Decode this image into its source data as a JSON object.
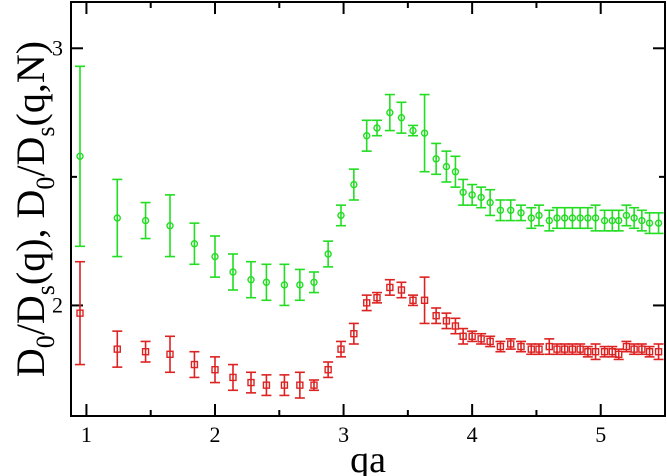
{
  "chart_data": {
    "type": "scatter",
    "xlabel": "qa",
    "ylabel": {
      "parts": [
        {
          "text": "D",
          "sub": false
        },
        {
          "text": "0",
          "sub": true
        },
        {
          "text": "/D",
          "sub": false
        },
        {
          "text": "s",
          "sub": true
        },
        {
          "text": "(q), D",
          "sub": false
        },
        {
          "text": "0",
          "sub": true
        },
        {
          "text": "/D",
          "sub": false
        },
        {
          "text": "s",
          "sub": true
        },
        {
          "text": "(q,N)",
          "sub": false
        }
      ]
    },
    "xlim": [
      0.88,
      5.5
    ],
    "ylim": [
      1.57,
      3.18
    ],
    "x_ticks": [
      1,
      2,
      3,
      4,
      5
    ],
    "x_tick_labels": [
      "1",
      "2",
      "3",
      "4",
      "5"
    ],
    "y_ticks": [
      2,
      3
    ],
    "y_tick_labels": [
      "2",
      "3"
    ],
    "grid": false,
    "series": [
      {
        "color": "#22dd22",
        "marker": "circle",
        "points": [
          [
            0.95,
            2.58,
            0.35
          ],
          [
            1.24,
            2.34,
            0.15
          ],
          [
            1.46,
            2.33,
            0.07
          ],
          [
            1.65,
            2.31,
            0.12
          ],
          [
            1.84,
            2.24,
            0.08
          ],
          [
            2.0,
            2.19,
            0.08
          ],
          [
            2.14,
            2.13,
            0.07
          ],
          [
            2.28,
            2.1,
            0.07
          ],
          [
            2.4,
            2.09,
            0.07
          ],
          [
            2.54,
            2.08,
            0.08
          ],
          [
            2.66,
            2.08,
            0.06
          ],
          [
            2.77,
            2.09,
            0.04
          ],
          [
            2.88,
            2.2,
            0.05
          ],
          [
            2.98,
            2.35,
            0.04
          ],
          [
            3.08,
            2.47,
            0.06
          ],
          [
            3.18,
            2.66,
            0.06
          ],
          [
            3.26,
            2.69,
            0.03
          ],
          [
            3.36,
            2.75,
            0.07
          ],
          [
            3.45,
            2.73,
            0.06
          ],
          [
            3.54,
            2.68,
            0.02
          ],
          [
            3.63,
            2.67,
            0.15
          ],
          [
            3.72,
            2.57,
            0.06
          ],
          [
            3.8,
            2.54,
            0.06
          ],
          [
            3.87,
            2.52,
            0.06
          ],
          [
            3.93,
            2.44,
            0.05
          ],
          [
            4.0,
            2.43,
            0.04
          ],
          [
            4.07,
            2.42,
            0.04
          ],
          [
            4.14,
            2.4,
            0.05
          ],
          [
            4.22,
            2.37,
            0.04
          ],
          [
            4.3,
            2.37,
            0.04
          ],
          [
            4.38,
            2.36,
            0.03
          ],
          [
            4.46,
            2.34,
            0.04
          ],
          [
            4.52,
            2.35,
            0.04
          ],
          [
            4.6,
            2.33,
            0.04
          ],
          [
            4.66,
            2.34,
            0.04
          ],
          [
            4.72,
            2.34,
            0.04
          ],
          [
            4.78,
            2.34,
            0.04
          ],
          [
            4.84,
            2.34,
            0.04
          ],
          [
            4.9,
            2.34,
            0.04
          ],
          [
            4.96,
            2.34,
            0.05
          ],
          [
            5.03,
            2.33,
            0.04
          ],
          [
            5.09,
            2.33,
            0.04
          ],
          [
            5.14,
            2.33,
            0.04
          ],
          [
            5.2,
            2.35,
            0.04
          ],
          [
            5.26,
            2.34,
            0.04
          ],
          [
            5.32,
            2.33,
            0.04
          ],
          [
            5.38,
            2.32,
            0.04
          ],
          [
            5.45,
            2.32,
            0.04
          ]
        ]
      },
      {
        "color": "#dd2222",
        "marker": "square",
        "points": [
          [
            0.95,
            1.97,
            0.2
          ],
          [
            1.24,
            1.83,
            0.07
          ],
          [
            1.46,
            1.82,
            0.04
          ],
          [
            1.65,
            1.81,
            0.07
          ],
          [
            1.84,
            1.77,
            0.05
          ],
          [
            2.0,
            1.75,
            0.05
          ],
          [
            2.14,
            1.72,
            0.05
          ],
          [
            2.28,
            1.7,
            0.04
          ],
          [
            2.4,
            1.69,
            0.04
          ],
          [
            2.54,
            1.69,
            0.04
          ],
          [
            2.66,
            1.69,
            0.05
          ],
          [
            2.77,
            1.69,
            0.02
          ],
          [
            2.88,
            1.75,
            0.03
          ],
          [
            2.98,
            1.83,
            0.03
          ],
          [
            3.08,
            1.89,
            0.04
          ],
          [
            3.18,
            2.01,
            0.03
          ],
          [
            3.26,
            2.03,
            0.02
          ],
          [
            3.36,
            2.07,
            0.03
          ],
          [
            3.45,
            2.06,
            0.03
          ],
          [
            3.54,
            2.02,
            0.02
          ],
          [
            3.63,
            2.02,
            0.09
          ],
          [
            3.72,
            1.96,
            0.03
          ],
          [
            3.8,
            1.94,
            0.03
          ],
          [
            3.87,
            1.92,
            0.03
          ],
          [
            3.93,
            1.88,
            0.03
          ],
          [
            4.0,
            1.88,
            0.02
          ],
          [
            4.07,
            1.87,
            0.02
          ],
          [
            4.14,
            1.86,
            0.02
          ],
          [
            4.22,
            1.84,
            0.02
          ],
          [
            4.3,
            1.85,
            0.02
          ],
          [
            4.38,
            1.84,
            0.02
          ],
          [
            4.46,
            1.83,
            0.02
          ],
          [
            4.52,
            1.83,
            0.02
          ],
          [
            4.6,
            1.84,
            0.03
          ],
          [
            4.66,
            1.83,
            0.02
          ],
          [
            4.72,
            1.83,
            0.02
          ],
          [
            4.78,
            1.83,
            0.02
          ],
          [
            4.84,
            1.83,
            0.02
          ],
          [
            4.9,
            1.82,
            0.02
          ],
          [
            4.96,
            1.82,
            0.03
          ],
          [
            5.03,
            1.82,
            0.02
          ],
          [
            5.09,
            1.82,
            0.02
          ],
          [
            5.14,
            1.81,
            0.02
          ],
          [
            5.2,
            1.84,
            0.02
          ],
          [
            5.26,
            1.83,
            0.02
          ],
          [
            5.32,
            1.83,
            0.02
          ],
          [
            5.38,
            1.82,
            0.02
          ],
          [
            5.45,
            1.82,
            0.03
          ]
        ]
      }
    ]
  }
}
